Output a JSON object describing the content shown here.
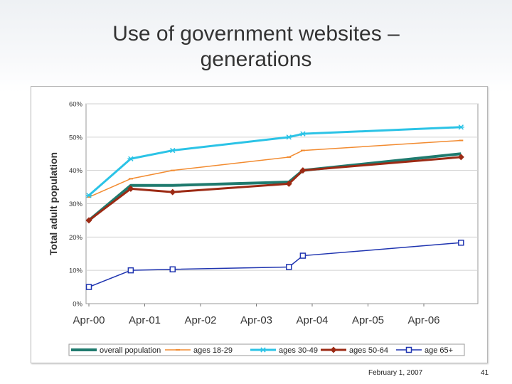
{
  "slide": {
    "title_line1": "Use of government websites –",
    "title_line2": "generations",
    "footer_date": "February 1, 2007",
    "page_number": "41"
  },
  "chart_data": {
    "type": "line",
    "ylabel": "Total adult population",
    "xlabel": "",
    "ylim": [
      0,
      60
    ],
    "y_ticks": [
      "0%",
      "10%",
      "20%",
      "30%",
      "40%",
      "50%",
      "60%"
    ],
    "x_tick_labels": [
      "Apr-00",
      "Apr-01",
      "Apr-02",
      "Apr-03",
      "Apr-04",
      "Apr-05",
      "Apr-06"
    ],
    "grid": true,
    "legend_position": "bottom",
    "x_dates": [
      "Apr-00",
      "Jan-01",
      "Oct-01",
      "Nov-03",
      "Feb-04",
      "Dec-06"
    ],
    "series": [
      {
        "name": "overall population",
        "color": "#1f7a6e",
        "marker": "none",
        "values": [
          25,
          35.5,
          35.5,
          36.5,
          40,
          45
        ]
      },
      {
        "name": "ages 18-29",
        "color": "#f28b30",
        "marker": "dash",
        "values": [
          32,
          37.5,
          40,
          44,
          46,
          49
        ]
      },
      {
        "name": "ages 30-49",
        "color": "#2bc3e6",
        "marker": "star",
        "values": [
          32.5,
          43.5,
          46,
          50,
          51,
          53
        ]
      },
      {
        "name": "ages 50-64",
        "color": "#9c2a14",
        "marker": "diamond",
        "values": [
          25,
          34.5,
          33.5,
          36,
          40,
          44
        ]
      },
      {
        "name": "age 65+",
        "color": "#1f34b0",
        "marker": "square",
        "values": [
          5,
          10,
          10.3,
          11,
          14.4,
          18.3
        ]
      }
    ]
  }
}
